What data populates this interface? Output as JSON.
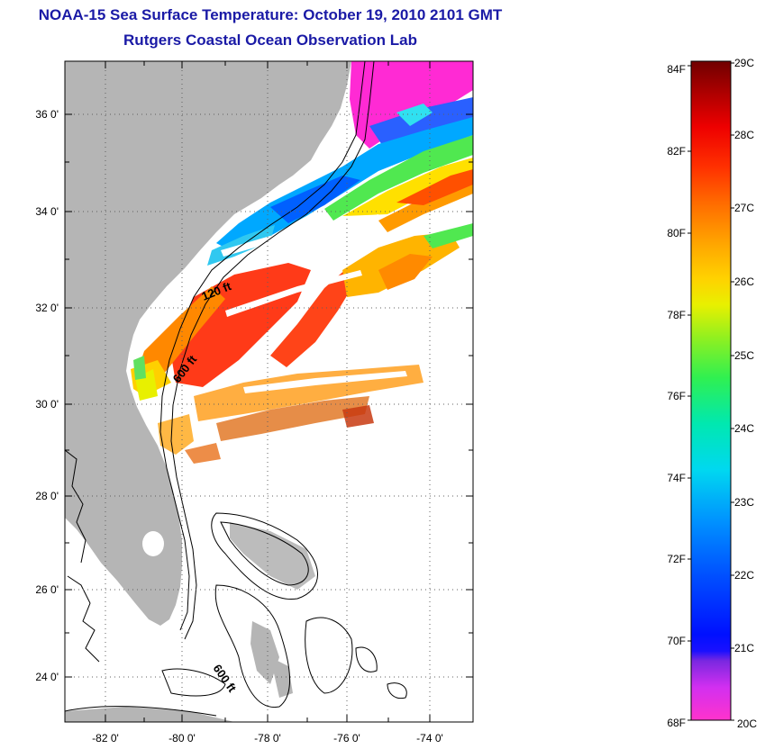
{
  "title": "NOAA-15 Sea Surface Temperature:  October 19, 2010 2101 GMT",
  "subtitle": "Rutgers Coastal Ocean Observation Lab",
  "map": {
    "lat_labels": [
      "36 0'",
      "34 0'",
      "32 0'",
      "30 0'",
      "28 0'",
      "26 0'",
      "24 0'"
    ],
    "lon_labels": [
      "-82 0'",
      "-80 0'",
      "-78 0'",
      "-76 0'",
      "-74 0'"
    ],
    "contour_labels": [
      "120 ft",
      "600 ft",
      "600 ft"
    ],
    "colors": {
      "land": "#b5b5b5",
      "no_data": "#ffffff",
      "contour": "#000000"
    }
  },
  "colorbar": {
    "fahrenheit_labels": [
      "84F",
      "82F",
      "80F",
      "78F",
      "76F",
      "74F",
      "72F",
      "70F",
      "68F"
    ],
    "celsius_labels": [
      "29C",
      "28C",
      "27C",
      "26C",
      "25C",
      "24C",
      "23C",
      "22C",
      "21C",
      "20C"
    ],
    "range_c": [
      20,
      29
    ],
    "range_f": [
      68,
      84
    ]
  }
}
